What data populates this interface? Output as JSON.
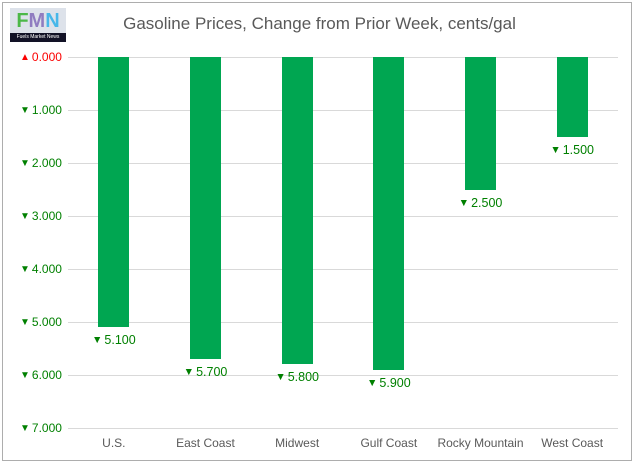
{
  "logo": {
    "letters": [
      {
        "char": "F",
        "color": "#4cb848"
      },
      {
        "char": "M",
        "color": "#8f7cc0"
      },
      {
        "char": "N",
        "color": "#47b7e9"
      }
    ],
    "tagline": "Fuels Market News"
  },
  "title": "Gasoline Prices, Change from Prior Week, cents/gal",
  "colors": {
    "bar": "#00a651",
    "label_green": "#008000",
    "label_red": "#fb0000",
    "axis_text": "#595959",
    "gridline": "#d9d9d9",
    "title_text": "#595959",
    "border": "#adadad"
  },
  "chart_data": {
    "type": "bar",
    "title": "Gasoline Prices, Change from Prior Week, cents/gal",
    "unit": "cents/gal",
    "direction": "decrease",
    "orientation": "vertical-downward",
    "grid": true,
    "legend": false,
    "categories": [
      "U.S.",
      "East Coast",
      "Midwest",
      "Gulf Coast",
      "Rocky Mountain",
      "West Coast"
    ],
    "values": [
      -5.1,
      -5.7,
      -5.8,
      -5.9,
      -2.5,
      -1.5
    ],
    "magnitudes": [
      5.1,
      5.7,
      5.8,
      5.9,
      2.5,
      1.5
    ],
    "data_labels": [
      "▼ 5.100",
      "▼ 5.700",
      "▼ 5.800",
      "▼ 5.900",
      "▼ 2.500",
      "▼ 1.500"
    ],
    "ylim": [
      0,
      -7
    ],
    "y_ticks": [
      {
        "symbol": "▲",
        "label": "0.000",
        "value": 0,
        "color": "#fb0000"
      },
      {
        "symbol": "▼",
        "label": "1.000",
        "value": -1,
        "color": "#008000"
      },
      {
        "symbol": "▼",
        "label": "2.000",
        "value": -2,
        "color": "#008000"
      },
      {
        "symbol": "▼",
        "label": "3.000",
        "value": -3,
        "color": "#008000"
      },
      {
        "symbol": "▼",
        "label": "4.000",
        "value": -4,
        "color": "#008000"
      },
      {
        "symbol": "▼",
        "label": "5.000",
        "value": -5,
        "color": "#008000"
      },
      {
        "symbol": "▼",
        "label": "6.000",
        "value": -6,
        "color": "#008000"
      },
      {
        "symbol": "▼",
        "label": "7.000",
        "value": -7,
        "color": "#008000"
      }
    ]
  }
}
